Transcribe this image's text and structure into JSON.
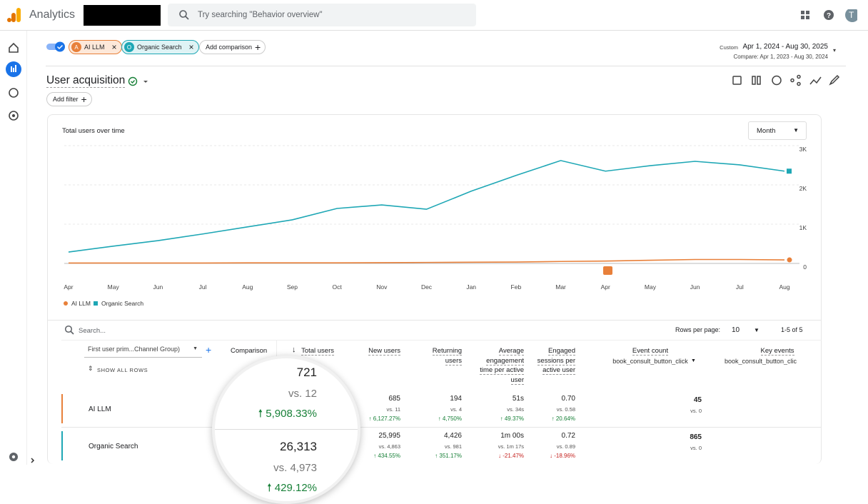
{
  "header": {
    "app": "Analytics",
    "search_placeholder": "Try searching \"Behavior overview\"",
    "avatar": "T"
  },
  "comparisons": [
    {
      "badge": "A",
      "name": "AI LLM"
    },
    {
      "badge": "O",
      "name": "Organic Search"
    }
  ],
  "add_comparison": "Add comparison",
  "date": {
    "label": "Custom",
    "range": "Apr 1, 2024 - Aug 30, 2025",
    "compare": "Compare: Apr 1, 2023 - Aug 30, 2024"
  },
  "report": {
    "title": "User acquisition",
    "add_filter": "Add filter"
  },
  "chart": {
    "type": "line",
    "title": "Total users over time",
    "granularity": "Month",
    "categories": [
      "Apr",
      "May",
      "Jun",
      "Jul",
      "Aug",
      "Sep",
      "Oct",
      "Nov",
      "Dec",
      "Jan",
      "Feb",
      "Mar",
      "Apr",
      "May",
      "Jun",
      "Jul",
      "Aug"
    ],
    "series": [
      {
        "name": "AI LLM",
        "color": "#e8803a",
        "values": [
          10,
          10,
          10,
          10,
          15,
          15,
          15,
          20,
          25,
          30,
          35,
          50,
          60,
          80,
          100,
          100,
          90
        ]
      },
      {
        "name": "Organic Search",
        "color": "#1ea7b5",
        "values": [
          290,
          440,
          580,
          750,
          930,
          1110,
          1400,
          1490,
          1380,
          1840,
          2240,
          2620,
          2350,
          2490,
          2600,
          2510,
          2350
        ]
      }
    ],
    "ylim": [
      0,
      3000
    ],
    "yticks": [
      0,
      {
        "value": 1000,
        "label": "1K"
      },
      {
        "value": 2000,
        "label": "2K"
      },
      {
        "value": 3000,
        "label": "3K"
      }
    ],
    "grid": true
  },
  "table": {
    "search_placeholder": "Search...",
    "rows_per_page_label": "Rows per page:",
    "rows_per_page": 10,
    "pagination": "1-5 of 5",
    "dimension": "First user prim...Channel Group)",
    "comparison_header": "Comparison",
    "show_all_rows": "SHOW ALL ROWS",
    "columns": [
      {
        "label": "Total users"
      },
      {
        "label": "New users"
      },
      {
        "label": "Returning users"
      },
      {
        "label": "Average engagement time per active user"
      },
      {
        "label": "Engaged sessions per active user"
      },
      {
        "label": "Event count",
        "sub": "book_consult_button_click"
      },
      {
        "label": "Key events",
        "sub": "book_consult_button_clic"
      }
    ],
    "rows": [
      {
        "name": "AI LLM",
        "cells": [
          {
            "value": "721",
            "compare": "vs. 12",
            "change": "5,908.33%",
            "dir": "up"
          },
          {
            "value": "685",
            "compare": "vs. 11",
            "change": "6,127.27%",
            "dir": "up"
          },
          {
            "value": "194",
            "compare": "vs. 4",
            "change": "4,750%",
            "dir": "up"
          },
          {
            "value": "51s",
            "compare": "vs. 34s",
            "change": "49.37%",
            "dir": "up"
          },
          {
            "value": "0.70",
            "compare": "vs. 0.58",
            "change": "20.64%",
            "dir": "up"
          },
          {
            "value": "45",
            "compare": "vs. 0"
          }
        ]
      },
      {
        "name": "Organic Search",
        "cells": [
          {
            "value": "26,313",
            "compare": "vs. 4,973",
            "change": "429.12%",
            "dir": "up"
          },
          {
            "value": "25,995",
            "compare": "vs. 4,863",
            "change": "434.55%",
            "dir": "up"
          },
          {
            "value": "4,426",
            "compare": "vs. 981",
            "change": "351.17%",
            "dir": "up"
          },
          {
            "value": "1m 00s",
            "compare": "vs. 1m 17s",
            "change": "-21.47%",
            "dir": "down"
          },
          {
            "value": "0.72",
            "compare": "vs. 0.89",
            "change": "-18.96%",
            "dir": "down"
          },
          {
            "value": "865",
            "compare": "vs. 0"
          }
        ]
      }
    ]
  }
}
